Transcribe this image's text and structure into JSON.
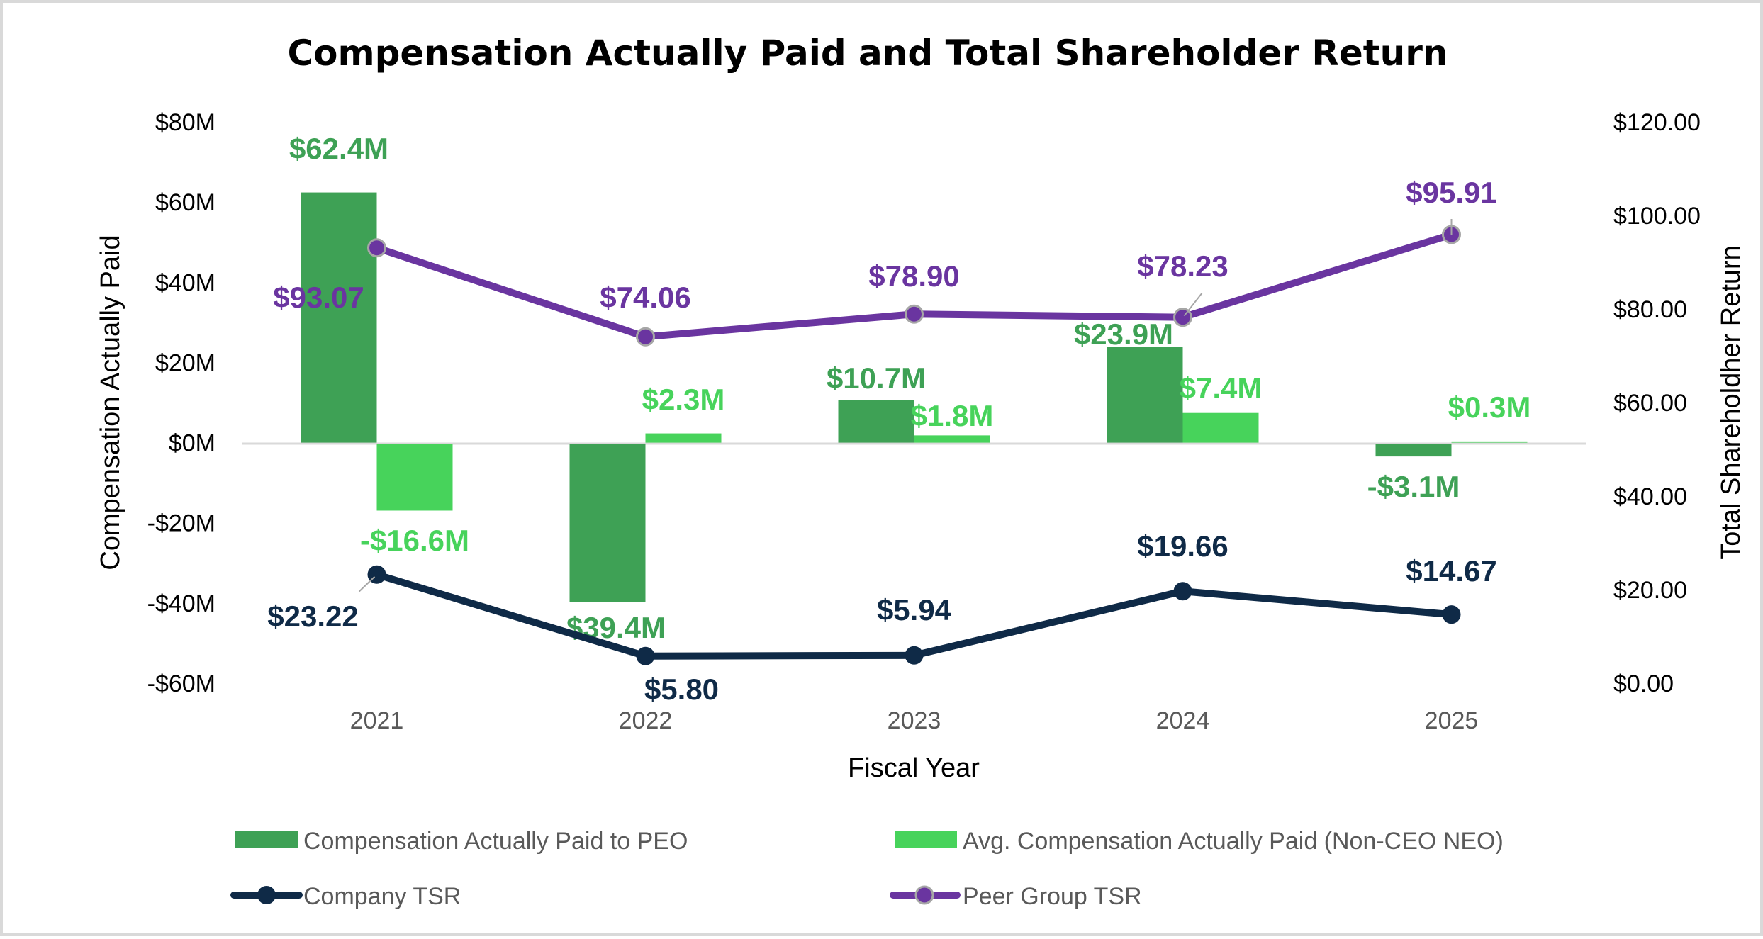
{
  "chart_data": {
    "type": "bar",
    "title": "Compensation Actually Paid and Total Shareholder Return",
    "xlabel": "Fiscal Year",
    "ylabel": "Compensation Actually Paid",
    "y2label": "Total Shareholdher Return",
    "categories": [
      "2021",
      "2022",
      "2023",
      "2024",
      "2025"
    ],
    "ylim": [
      -60,
      80
    ],
    "y_ticks": [
      80,
      60,
      40,
      20,
      0,
      -20,
      -40,
      -60
    ],
    "y_tick_labels": [
      "$80M",
      "$60M",
      "$40M",
      "$20M",
      "$0M",
      "-$20M",
      "-$40M",
      "-$60M"
    ],
    "y2lim": [
      0,
      120
    ],
    "y2_ticks": [
      120,
      100,
      80,
      60,
      40,
      20,
      0
    ],
    "y2_tick_labels": [
      "$120.00",
      "$100.00",
      "$80.00",
      "$60.00",
      "$40.00",
      "$20.00",
      "$0.00"
    ],
    "grid": false,
    "legend_position": "bottom",
    "series": [
      {
        "name": "Compensation Actually Paid to PEO",
        "kind": "bar",
        "axis": "left",
        "color": "#3ea155",
        "values": [
          62.4,
          -39.4,
          10.7,
          23.9,
          -3.1
        ],
        "labels": [
          "$62.4M",
          "-$39.4M",
          "$10.7M",
          "$23.9M",
          "-$3.1M"
        ]
      },
      {
        "name": "Avg. Compensation Actually Paid (Non-CEO NEO)",
        "kind": "bar",
        "axis": "left",
        "color": "#47d35b",
        "values": [
          -16.6,
          2.3,
          1.8,
          7.4,
          0.3
        ],
        "labels": [
          "-$16.6M",
          "$2.3M",
          "$1.8M",
          "$7.4M",
          "$0.3M"
        ]
      },
      {
        "name": "Company TSR",
        "kind": "line",
        "axis": "right",
        "color": "#0f2a47",
        "values": [
          23.22,
          5.8,
          5.94,
          19.66,
          14.67
        ],
        "labels": [
          "$23.22",
          "$5.80",
          "$5.94",
          "$19.66",
          "$14.67"
        ]
      },
      {
        "name": "Peer Group TSR",
        "kind": "line",
        "axis": "right",
        "color": "#6a35a0",
        "values": [
          93.07,
          74.06,
          78.9,
          78.23,
          95.91
        ],
        "labels": [
          "$93.07",
          "$74.06",
          "$78.90",
          "$78.23",
          "$95.91"
        ]
      }
    ]
  }
}
